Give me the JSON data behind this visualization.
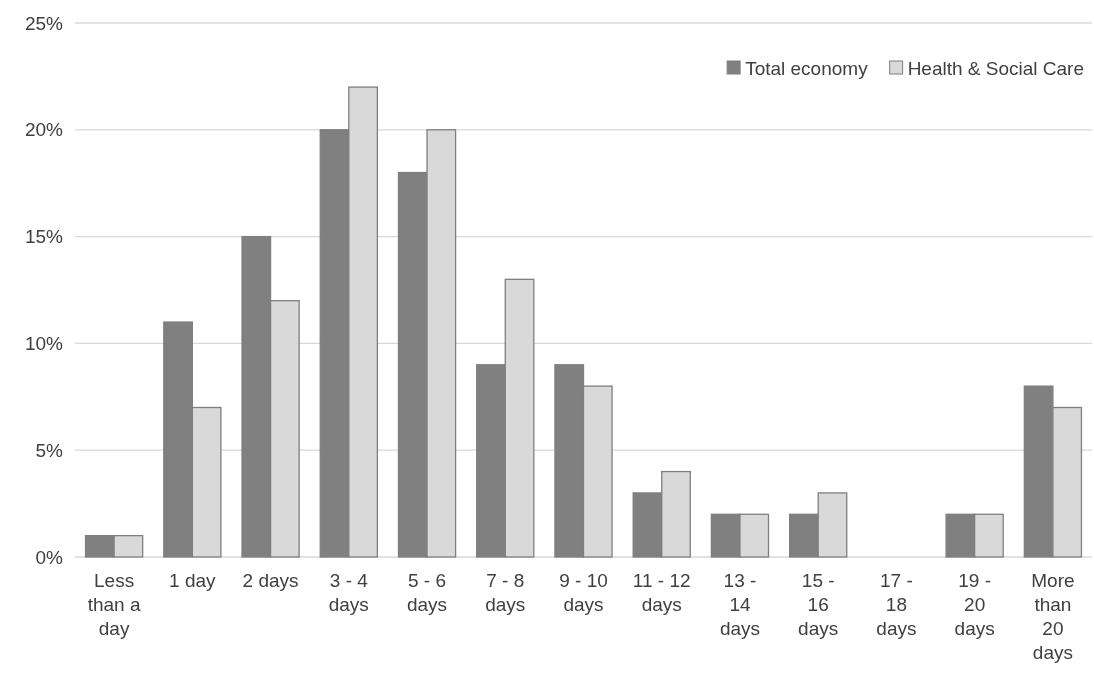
{
  "chart_data": {
    "type": "bar",
    "categories": [
      "Less than a day",
      "1 day",
      "2 days",
      "3 - 4 days",
      "5 - 6 days",
      "7 - 8 days",
      "9 - 10 days",
      "11 - 12 days",
      "13 - 14 days",
      "15 - 16 days",
      "17 - 18 days",
      "19 - 20 days",
      "More than 20 days"
    ],
    "series": [
      {
        "name": "Total economy",
        "color": "#808080",
        "values": [
          1,
          11,
          15,
          20,
          18,
          9,
          9,
          3,
          2,
          2,
          0,
          2,
          8
        ]
      },
      {
        "name": "Health & Social Care",
        "color": "#d9d9d9",
        "values": [
          1,
          7,
          12,
          22,
          20,
          13,
          8,
          4,
          2,
          3,
          0,
          2,
          7
        ]
      }
    ],
    "ylim": [
      0,
      25
    ],
    "yticks": [
      {
        "value": 0,
        "label": "0%"
      },
      {
        "value": 5,
        "label": "5%"
      },
      {
        "value": 10,
        "label": "10%"
      },
      {
        "value": 15,
        "label": "15%"
      },
      {
        "value": 20,
        "label": "20%"
      },
      {
        "value": 25,
        "label": "25%"
      }
    ],
    "grid": "y",
    "legend": "top right"
  }
}
